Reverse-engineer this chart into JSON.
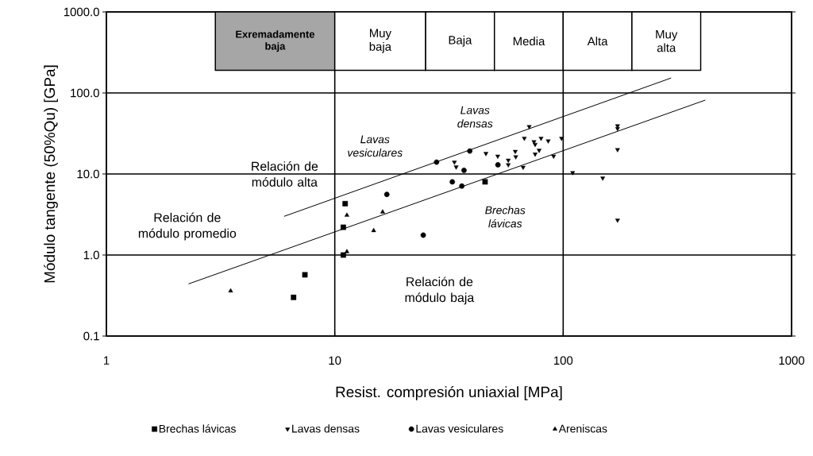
{
  "chart_data": {
    "type": "scatter",
    "xlabel": "Resist. compresión uniaxial [MPa]",
    "ylabel": "Módulo tangente (50%Qu) [GPa]",
    "xlim": [
      1,
      1000
    ],
    "ylim": [
      0.1,
      1000
    ],
    "xticks": [
      1,
      10,
      100,
      1000
    ],
    "yticks": [
      0.1,
      {
        "value": 1,
        "label": "1.0"
      },
      {
        "value": 10,
        "label": "10.0"
      },
      {
        "value": 100,
        "label": "100.0"
      },
      {
        "value": 1000,
        "label": "1000.0"
      }
    ],
    "log": "xy",
    "grid": true,
    "legend": "bottom",
    "series": [
      {
        "name": "Brechas lávicas",
        "color": "#000000",
        "marker": "square",
        "x": [
          11.1,
          10.9,
          10.9,
          7.4,
          6.6,
          45.5
        ],
        "values": [
          4.3,
          2.2,
          1.0,
          0.57,
          0.3,
          8.0
        ]
      },
      {
        "name": "Lavas densas",
        "color": "#000000",
        "marker": "triangle-down",
        "x": [
          71,
          67.6,
          45.9,
          51.7,
          33.4,
          34,
          61.7,
          62,
          57.5,
          57.5,
          66.8,
          74.5,
          75.4,
          80,
          86,
          98.4,
          78.5,
          75.4,
          90.8,
          110,
          149,
          173,
          173,
          173,
          173
        ],
        "values": [
          38.5,
          27.6,
          17.9,
          16.6,
          14.0,
          12.2,
          19,
          16.3,
          14.8,
          13,
          12.1,
          25,
          23.2,
          27.6,
          25.6,
          27.6,
          19.6,
          17.6,
          16.6,
          10.4,
          8.9,
          39.4,
          36.4,
          20,
          2.7
        ]
      },
      {
        "name": "Lavas vesiculares",
        "color": "#000000",
        "marker": "circle",
        "x": [
          16.9,
          27.9,
          39,
          36.8,
          32.7,
          36,
          51.8,
          24.4
        ],
        "values": [
          5.6,
          14.0,
          19.2,
          11.1,
          8.0,
          7.1,
          13.0,
          1.76
        ]
      },
      {
        "name": "Areniscas",
        "color": "#000000",
        "marker": "triangle",
        "x": [
          3.5,
          11.3,
          16.2,
          14.8,
          11.3
        ],
        "values": [
          0.36,
          3.1,
          3.4,
          2.0,
          1.1
        ]
      },
      {
        "type": "line",
        "color": "#000000",
        "marker": "none",
        "line_style": "solid",
        "x": [
          6.0,
          297
        ],
        "values": [
          3.0,
          153
        ]
      },
      {
        "type": "line",
        "color": "#000000",
        "marker": "none",
        "line_style": "solid",
        "x": [
          2.29,
          419
        ],
        "values": [
          0.44,
          81.6
        ]
      }
    ],
    "bands": [
      {
        "axis": "x",
        "from": 3,
        "to": 10,
        "label": "Exremadamente baja",
        "color": "#a6a6a6"
      },
      {
        "axis": "x",
        "from": 10,
        "to": 25,
        "label": "Muy baja",
        "color": "#ffffff"
      },
      {
        "axis": "x",
        "from": 25,
        "to": 50,
        "label": "Baja",
        "color": "#ffffff"
      },
      {
        "axis": "x",
        "from": 50,
        "to": 100,
        "label": "Media",
        "color": "#ffffff"
      },
      {
        "axis": "x",
        "from": 100,
        "to": 200,
        "label": "Alta",
        "color": "#ffffff"
      },
      {
        "axis": "x",
        "from": 200,
        "to": 400,
        "label": "Muy alta",
        "color": "#ffffff"
      }
    ],
    "annotations": [
      "Relación de módulo alta",
      "Relación de módulo promedio",
      "Relación de módulo baja",
      "Lavas vesiculares",
      "Lavas densas",
      "Brechas lávicas"
    ]
  }
}
